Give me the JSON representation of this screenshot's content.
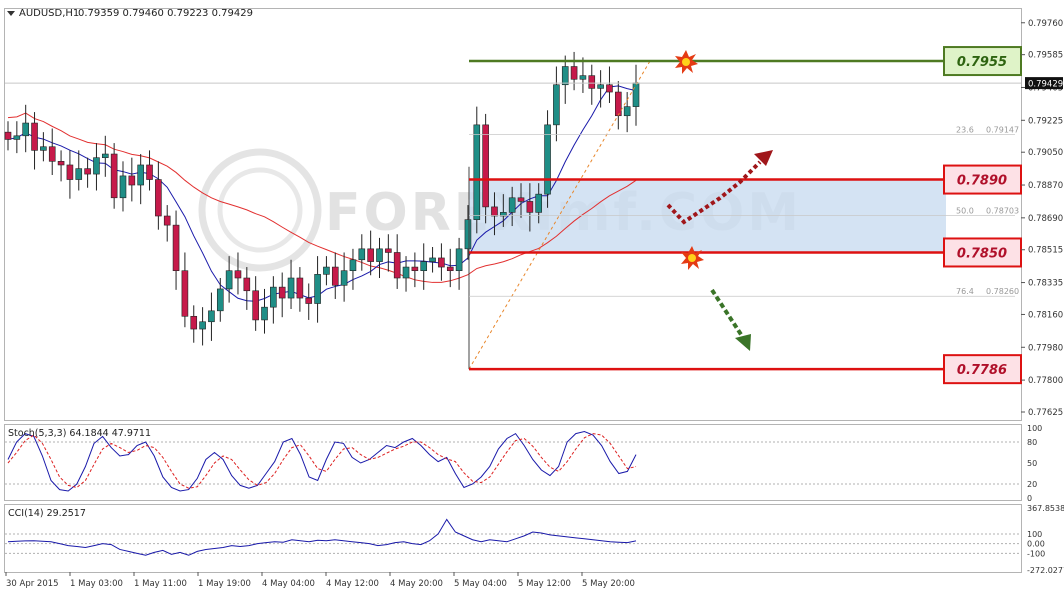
{
  "header": {
    "symbol": "AUDUSD,H1",
    "ohlc": "0.79359 0.79460 0.79223 0.79429"
  },
  "watermark": "FOREXimf.COM",
  "chart_data": [
    {
      "type": "candlestick",
      "symbol": "AUDUSD",
      "timeframe": "H1",
      "ylim": [
        0.77625,
        0.7983
      ],
      "price_ticks": [
        "0.79760",
        "0.79585",
        "0.79405",
        "0.79225",
        "0.79050",
        "0.78870",
        "0.78690",
        "0.78515",
        "0.78335",
        "0.78160",
        "0.77980",
        "0.77800",
        "0.77625"
      ],
      "current_price": "0.79429",
      "time_labels": [
        "30 Apr 2015",
        "1 May 03:00",
        "1 May 11:00",
        "1 May 19:00",
        "4 May 04:00",
        "4 May 12:00",
        "4 May 20:00",
        "5 May 04:00",
        "5 May 12:00",
        "5 May 20:00"
      ],
      "candles_close": [
        0.7912,
        0.7914,
        0.7921,
        0.7906,
        0.7908,
        0.79,
        0.7898,
        0.789,
        0.7896,
        0.7893,
        0.7902,
        0.7904,
        0.788,
        0.7892,
        0.7887,
        0.7898,
        0.789,
        0.787,
        0.7865,
        0.784,
        0.7815,
        0.7808,
        0.7812,
        0.7818,
        0.783,
        0.784,
        0.7836,
        0.7829,
        0.7813,
        0.782,
        0.7831,
        0.7825,
        0.7836,
        0.7825,
        0.7822,
        0.7838,
        0.7842,
        0.7832,
        0.784,
        0.7846,
        0.7852,
        0.7845,
        0.7852,
        0.785,
        0.7836,
        0.7842,
        0.784,
        0.7845,
        0.7847,
        0.7842,
        0.784,
        0.7852,
        0.7868,
        0.792,
        0.7875,
        0.787,
        0.7872,
        0.788,
        0.7878,
        0.7872,
        0.7882,
        0.792,
        0.7942,
        0.7952,
        0.7945,
        0.7947,
        0.794,
        0.7942,
        0.7938,
        0.7925,
        0.793,
        0.7943
      ],
      "levels": [
        {
          "price": "0.7955",
          "color": "#4e7a22"
        },
        {
          "price": "0.7890",
          "color": "#dd1111"
        },
        {
          "price": "0.7850",
          "color": "#dd1111"
        },
        {
          "price": "0.7786",
          "color": "#dd1111"
        }
      ],
      "fibonacci": [
        {
          "ratio": "23.6",
          "price": "0.79147"
        },
        {
          "ratio": "50.0",
          "price": "0.78703"
        },
        {
          "ratio": "76.4",
          "price": "0.78260"
        }
      ]
    },
    {
      "type": "line",
      "title": "Stoch(5,3,3) 64.1844 47.9711",
      "ylim": [
        0,
        100
      ],
      "ticks": [
        "100",
        "80",
        "50",
        "20",
        "0"
      ],
      "series": [
        {
          "color": "#1a1aaa",
          "values": [
            55,
            80,
            92,
            88,
            60,
            25,
            12,
            10,
            20,
            45,
            78,
            88,
            72,
            60,
            62,
            75,
            80,
            60,
            30,
            15,
            10,
            12,
            28,
            55,
            65,
            55,
            32,
            18,
            14,
            18,
            35,
            52,
            80,
            85,
            62,
            30,
            25,
            55,
            80,
            78,
            58,
            50,
            55,
            65,
            75,
            72,
            80,
            85,
            75,
            62,
            52,
            58,
            35,
            15,
            20,
            30,
            45,
            70,
            85,
            92,
            75,
            55,
            40,
            32,
            45,
            80,
            92,
            95,
            90,
            75,
            52,
            35,
            38,
            62
          ]
        },
        {
          "color": "#dd2222",
          "style": "dashed",
          "values": [
            50,
            65,
            82,
            90,
            78,
            55,
            30,
            18,
            15,
            25,
            48,
            70,
            78,
            72,
            65,
            68,
            75,
            72,
            58,
            38,
            20,
            14,
            16,
            32,
            50,
            60,
            55,
            40,
            26,
            18,
            22,
            35,
            55,
            72,
            76,
            60,
            42,
            38,
            55,
            70,
            72,
            62,
            55,
            58,
            64,
            70,
            74,
            80,
            80,
            72,
            62,
            56,
            52,
            36,
            24,
            22,
            30,
            48,
            66,
            82,
            85,
            74,
            58,
            44,
            38,
            52,
            70,
            86,
            92,
            90,
            78,
            60,
            42,
            45
          ]
        }
      ]
    },
    {
      "type": "line",
      "title": "CCI(14) 29.2517",
      "ylim": [
        -272.0277,
        367.8538
      ],
      "ticks": [
        "367.8538",
        "100",
        "0.00",
        "-100",
        "-272.0277"
      ],
      "series": [
        {
          "color": "#1a1aaa",
          "values": [
            20,
            25,
            28,
            30,
            25,
            20,
            0,
            -20,
            -30,
            -40,
            -20,
            0,
            -10,
            -60,
            -80,
            -100,
            -120,
            -90,
            -70,
            -110,
            -90,
            -120,
            -80,
            -60,
            -50,
            -40,
            -20,
            -30,
            -20,
            0,
            10,
            20,
            15,
            40,
            30,
            20,
            35,
            30,
            40,
            30,
            20,
            10,
            0,
            -20,
            -10,
            10,
            20,
            0,
            -10,
            30,
            100,
            250,
            120,
            80,
            40,
            20,
            40,
            30,
            20,
            50,
            80,
            120,
            110,
            90,
            80,
            70,
            60,
            50,
            40,
            30,
            20,
            15,
            10,
            29
          ]
        }
      ]
    }
  ]
}
